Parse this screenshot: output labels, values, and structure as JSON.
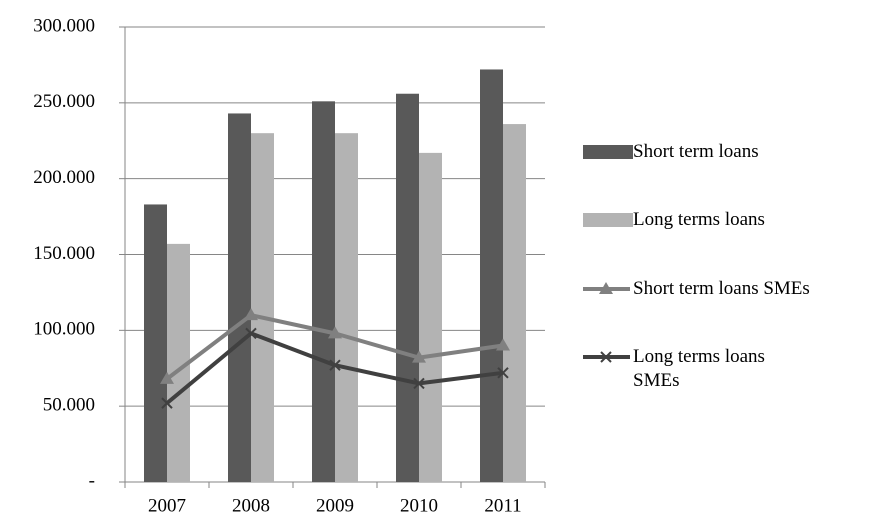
{
  "chart_data": {
    "type": "bar",
    "categories": [
      "2007",
      "2008",
      "2009",
      "2010",
      "2011"
    ],
    "series": [
      {
        "name": "Short term loans",
        "type": "bar",
        "color": "#595959",
        "values": [
          183000,
          243000,
          251000,
          256000,
          272000
        ]
      },
      {
        "name": "Long terms loans",
        "type": "bar",
        "color": "#b3b3b3",
        "values": [
          157000,
          230000,
          230000,
          217000,
          236000
        ]
      },
      {
        "name": "Short term loans SMEs",
        "type": "line",
        "marker": "triangle",
        "color": "#808080",
        "values": [
          68000,
          110000,
          98000,
          82000,
          90000
        ]
      },
      {
        "name": "Long terms loans SMEs",
        "type": "line",
        "marker": "x",
        "color": "#404040",
        "values": [
          52000,
          98000,
          77000,
          65000,
          72000
        ]
      }
    ],
    "ylim": [
      0,
      300000
    ],
    "yticks": [
      {
        "value": 0,
        "label": "-"
      },
      {
        "value": 50000,
        "label": "50.000"
      },
      {
        "value": 100000,
        "label": "100.000"
      },
      {
        "value": 150000,
        "label": "150.000"
      },
      {
        "value": 200000,
        "label": "200.000"
      },
      {
        "value": 250000,
        "label": "250.000"
      },
      {
        "value": 300000,
        "label": "300.000"
      }
    ],
    "grid": true,
    "legend": "right"
  }
}
